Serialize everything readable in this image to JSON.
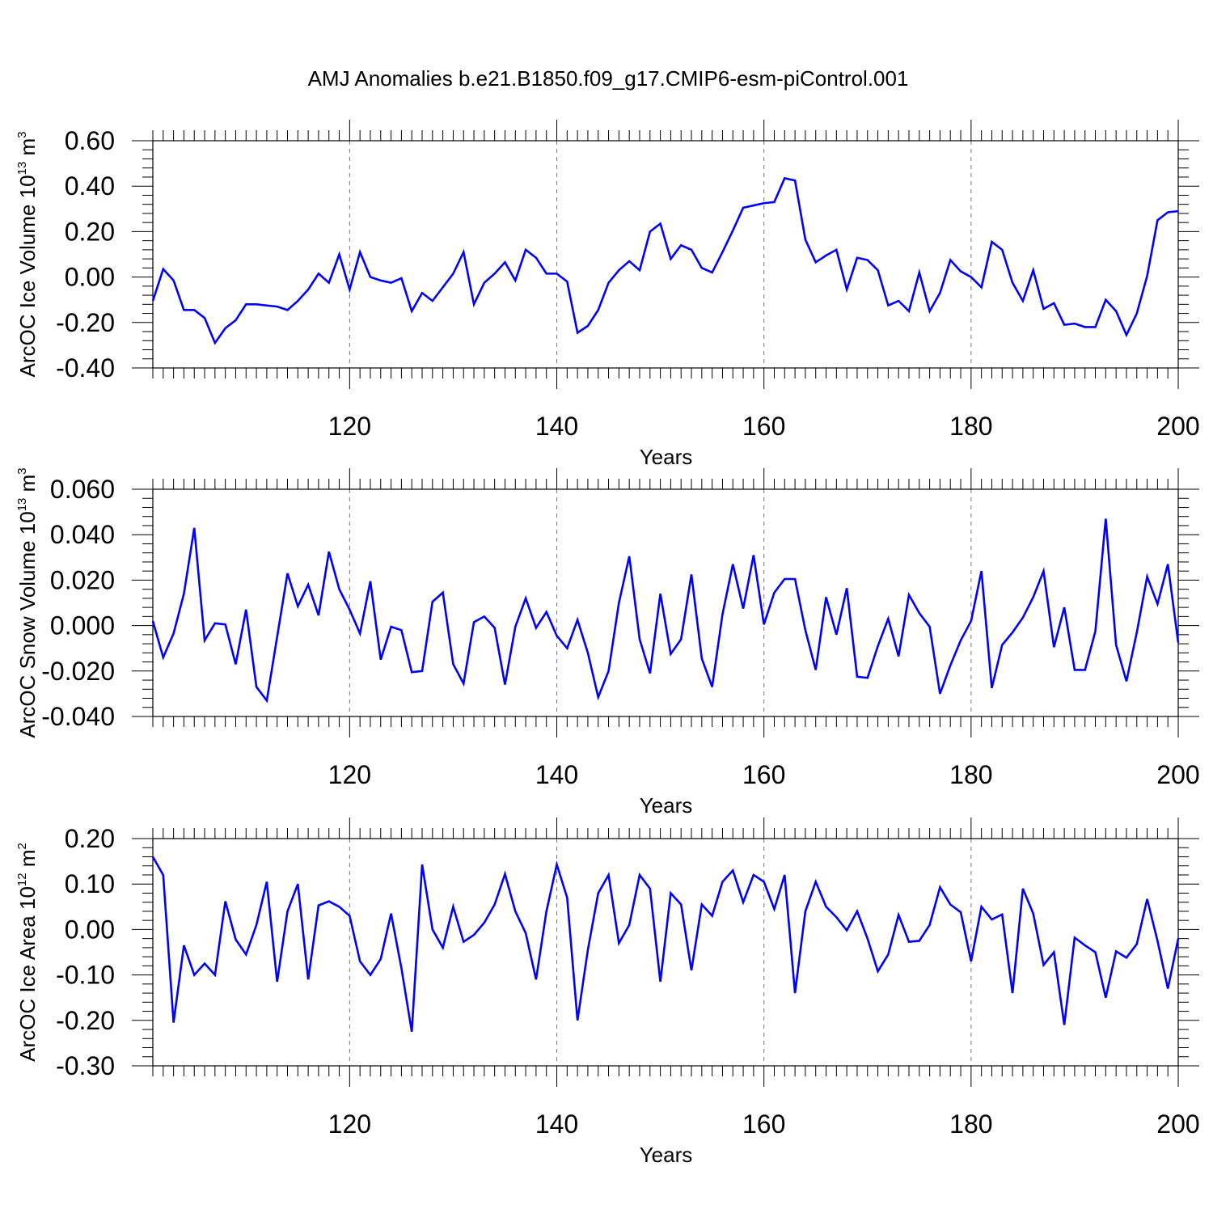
{
  "title": "AMJ Anomalies b.e21.B1850.f09_g17.CMIP6-esm-piControl.001",
  "colors": {
    "series": "#0000ff",
    "grid": "#777777",
    "axis": "#000000"
  },
  "chart_data": [
    {
      "type": "line",
      "title": "AMJ Anomalies b.e21.B1850.f09_g17.CMIP6-esm-piControl.001",
      "xlabel": "Years",
      "ylabel": "ArcOC Ice Volume 10",
      "ylabel_sup": "13",
      "ylabel_unit": " m",
      "ylabel_unit_sup": "3",
      "xlim": [
        101,
        200
      ],
      "ylim": [
        -0.4,
        0.6
      ],
      "yticks": [
        -0.4,
        -0.2,
        0,
        0.2,
        0.4,
        0.6
      ],
      "ytick_labels": [
        "-0.40",
        "-0.20",
        "0.00",
        "0.20",
        "0.40",
        "0.60"
      ],
      "xticks": [
        120,
        140,
        160,
        180,
        200
      ],
      "xtick_labels": [
        "120",
        "140",
        "160",
        "180",
        "200"
      ],
      "grid": "vertical dashed at x ticks",
      "x_start": 101,
      "y": [
        -0.105,
        0.035,
        -0.015,
        -0.145,
        -0.145,
        -0.18,
        -0.29,
        -0.225,
        -0.19,
        -0.12,
        -0.12,
        -0.125,
        -0.13,
        -0.145,
        -0.105,
        -0.055,
        0.015,
        -0.025,
        0.1,
        -0.055,
        0.11,
        0.0,
        -0.015,
        -0.025,
        -0.005,
        -0.15,
        -0.07,
        -0.105,
        -0.045,
        0.015,
        0.11,
        -0.12,
        -0.025,
        0.015,
        0.065,
        -0.015,
        0.12,
        0.085,
        0.015,
        0.015,
        -0.02,
        -0.245,
        -0.215,
        -0.145,
        -0.025,
        0.03,
        0.07,
        0.03,
        0.2,
        0.235,
        0.08,
        0.14,
        0.12,
        0.04,
        0.02,
        0.11,
        0.205,
        0.305,
        0.315,
        0.325,
        0.33,
        0.435,
        0.425,
        0.165,
        0.065,
        0.095,
        0.12,
        -0.055,
        0.085,
        0.075,
        0.03,
        -0.125,
        -0.105,
        -0.15,
        0.02,
        -0.15,
        -0.07,
        0.075,
        0.025,
        0.0,
        -0.045,
        0.155,
        0.12,
        -0.025,
        -0.105,
        0.03,
        -0.14,
        -0.115,
        -0.21,
        -0.205,
        -0.22,
        -0.22,
        -0.1,
        -0.15,
        -0.255,
        -0.16,
        0.005,
        0.25,
        0.285,
        0.29
      ]
    },
    {
      "type": "line",
      "xlabel": "Years",
      "ylabel": "ArcOC Snow Volume 10",
      "ylabel_sup": "13",
      "ylabel_unit": " m",
      "ylabel_unit_sup": "3",
      "xlim": [
        101,
        200
      ],
      "ylim": [
        -0.04,
        0.06
      ],
      "yticks": [
        -0.04,
        -0.02,
        0,
        0.02,
        0.04,
        0.06
      ],
      "ytick_labels": [
        "-0.040",
        "-0.020",
        "0.000",
        "0.020",
        "0.040",
        "0.060"
      ],
      "xticks": [
        120,
        140,
        160,
        180,
        200
      ],
      "xtick_labels": [
        "120",
        "140",
        "160",
        "180",
        "200"
      ],
      "grid": "vertical dashed at x ticks",
      "x_start": 101,
      "y": [
        0.002,
        -0.014,
        -0.0035,
        0.014,
        0.043,
        -0.0065,
        0.001,
        0.0005,
        -0.017,
        0.007,
        -0.027,
        -0.033,
        -0.005,
        0.023,
        0.0085,
        0.018,
        0.0045,
        0.0325,
        0.016,
        0.007,
        -0.0035,
        0.0195,
        -0.015,
        -0.0005,
        -0.002,
        -0.0205,
        -0.02,
        0.0105,
        0.0145,
        -0.017,
        -0.0255,
        0.0015,
        0.004,
        -0.001,
        -0.026,
        -0.0005,
        0.012,
        -0.001,
        0.006,
        -0.0045,
        -0.01,
        0.0025,
        -0.012,
        -0.0315,
        -0.02,
        0.01,
        0.0305,
        -0.006,
        -0.021,
        0.014,
        -0.0125,
        -0.006,
        0.0225,
        -0.0145,
        -0.027,
        0.005,
        0.027,
        0.0075,
        0.031,
        0.0005,
        0.0145,
        0.0205,
        0.0205,
        -0.002,
        -0.0195,
        0.0125,
        -0.004,
        0.0165,
        -0.0225,
        -0.023,
        -0.009,
        0.003,
        -0.0135,
        0.0135,
        0.0055,
        -0.0005,
        -0.03,
        -0.0175,
        -0.0065,
        0.002,
        0.024,
        -0.0275,
        -0.0085,
        -0.003,
        0.0035,
        0.0125,
        0.024,
        -0.0095,
        0.008,
        -0.0195,
        -0.0195,
        -0.0025,
        0.047,
        -0.0085,
        -0.0245,
        -0.003,
        0.0215,
        0.0095,
        0.027,
        -0.0075
      ]
    },
    {
      "type": "line",
      "xlabel": "Years",
      "ylabel": "ArcOC Ice Area 10",
      "ylabel_sup": "12",
      "ylabel_unit": " m",
      "ylabel_unit_sup": "2",
      "xlim": [
        101,
        200
      ],
      "ylim": [
        -0.3,
        0.2
      ],
      "yticks": [
        -0.3,
        -0.2,
        -0.1,
        0,
        0.1,
        0.2
      ],
      "ytick_labels": [
        "-0.30",
        "-0.20",
        "-0.10",
        "0.00",
        "0.10",
        "0.20"
      ],
      "xticks": [
        120,
        140,
        160,
        180,
        200
      ],
      "xtick_labels": [
        "120",
        "140",
        "160",
        "180",
        "200"
      ],
      "grid": "vertical dashed at x ticks",
      "x_start": 101,
      "y": [
        0.16,
        0.12,
        -0.205,
        -0.035,
        -0.1,
        -0.075,
        -0.1,
        0.062,
        -0.022,
        -0.055,
        0.01,
        0.105,
        -0.115,
        0.04,
        0.1,
        -0.11,
        0.053,
        0.062,
        0.05,
        0.03,
        -0.07,
        -0.1,
        -0.065,
        0.035,
        -0.085,
        -0.225,
        0.143,
        0.0,
        -0.04,
        0.05,
        -0.027,
        -0.012,
        0.015,
        0.055,
        0.122,
        0.04,
        -0.008,
        -0.11,
        0.04,
        0.143,
        0.07,
        -0.2,
        -0.045,
        0.08,
        0.12,
        -0.03,
        0.01,
        0.12,
        0.09,
        -0.115,
        0.08,
        0.055,
        -0.09,
        0.055,
        0.03,
        0.105,
        0.13,
        0.06,
        0.12,
        0.105,
        0.045,
        0.12,
        -0.14,
        0.04,
        0.105,
        0.05,
        0.027,
        -0.002,
        0.04,
        -0.02,
        -0.092,
        -0.055,
        0.032,
        -0.027,
        -0.025,
        0.01,
        0.093,
        0.055,
        0.038,
        -0.07,
        0.05,
        0.022,
        0.033,
        -0.14,
        0.09,
        0.035,
        -0.078,
        -0.05,
        -0.21,
        -0.018,
        -0.035,
        -0.05,
        -0.15,
        -0.048,
        -0.062,
        -0.032,
        0.067,
        -0.025,
        -0.13,
        -0.02
      ]
    }
  ]
}
